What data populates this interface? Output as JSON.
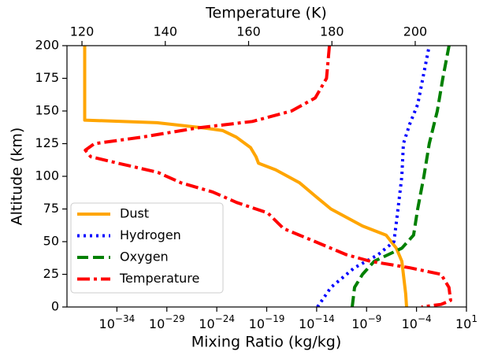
{
  "chart_data": {
    "type": "line",
    "xlabel": "Mixing Ratio (kg/kg)",
    "ylabel": "Altitude (km)",
    "x2label": "Temperature (K)",
    "xscale": "log",
    "xlim": [
      1e-39,
      10
    ],
    "xticks": [
      {
        "value": 1e-34,
        "label": "10−34"
      },
      {
        "value": 1e-29,
        "label": "10−29"
      },
      {
        "value": 1e-24,
        "label": "10−24"
      },
      {
        "value": 1e-19,
        "label": "10−19"
      },
      {
        "value": 1e-14,
        "label": "10−14"
      },
      {
        "value": 1e-09,
        "label": "10−9"
      },
      {
        "value": 0.0001,
        "label": "10−4"
      },
      {
        "value": 10,
        "label": "101"
      }
    ],
    "x2lim": [
      116.4,
      212.3
    ],
    "x2ticks": [
      120,
      140,
      160,
      180,
      200
    ],
    "ylim": [
      0,
      200
    ],
    "yticks": [
      0,
      25,
      50,
      75,
      100,
      125,
      150,
      175,
      200
    ],
    "legend": "lower left",
    "series": [
      {
        "name": "Dust",
        "color": "#ffa500",
        "linestyle": "solid",
        "values": [
          6e-38,
          6e-38,
          1e-30,
          6e-26,
          4e-24,
          9e-23,
          2.4e-21,
          8.5e-21,
          1.5e-20,
          8e-19,
          2e-16,
          7e-15,
          2.7e-13,
          3.9e-10,
          9e-08,
          9.5e-07,
          3.4e-06,
          8.3e-06,
          1e-05
        ],
        "altitude": [
          200,
          143,
          141,
          137,
          135,
          130,
          122,
          115,
          110,
          105,
          95,
          85,
          75,
          62,
          55,
          45,
          35,
          10,
          0
        ]
      },
      {
        "name": "Hydrogen",
        "color": "#0000ff",
        "linestyle": "dotted",
        "values": [
          1.2e-14,
          2.7e-13,
          6e-11,
          1.4e-08,
          5.5e-07,
          1.4e-06,
          3.4e-06,
          4.9e-06,
          2.1e-05,
          0.00013,
          0.0019
        ],
        "altitude": [
          0,
          15,
          30,
          40,
          50,
          75,
          100,
          125,
          140,
          155,
          200
        ]
      },
      {
        "name": "Oxygen",
        "color": "#008000",
        "linestyle": "dashed",
        "values": [
          3.6e-11,
          6.3e-11,
          3.9e-10,
          5.9e-09,
          3.4e-06,
          5.1e-05,
          0.00013,
          0.00055,
          0.0019,
          0.012,
          0.043,
          0.18
        ],
        "altitude": [
          0,
          15,
          25,
          35,
          45,
          55,
          75,
          100,
          125,
          150,
          175,
          200
        ]
      },
      {
        "name": "Temperature",
        "color": "#ff0000",
        "linestyle": "dashdot",
        "axis": "x2",
        "values": [
          179.4,
          178.7,
          176,
          170.3,
          160.9,
          147.6,
          134.4,
          123,
          120.8,
          122.1,
          128.7,
          138.2,
          143.8,
          151.4,
          157.1,
          164.6,
          168.4,
          176,
          183.5,
          189.2,
          198.7,
          206.2,
          208.1,
          208.5,
          206.2,
          201.5
        ],
        "altitude": [
          200,
          175,
          160,
          150,
          142,
          137,
          130,
          125,
          120,
          115,
          110,
          103,
          95,
          88,
          80,
          72,
          60,
          50,
          40,
          35,
          30,
          25,
          15,
          5,
          2,
          0
        ]
      }
    ]
  }
}
